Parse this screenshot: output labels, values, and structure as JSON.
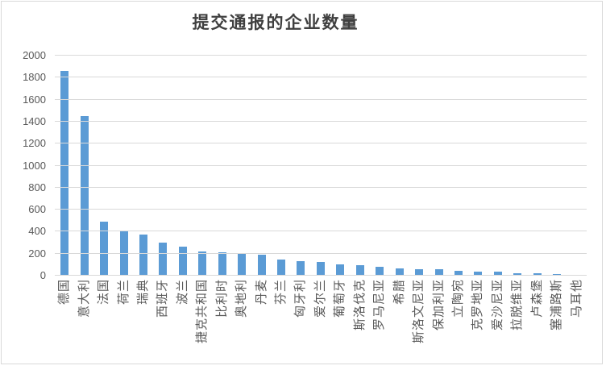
{
  "chart_title": "提交通报的企业数量",
  "chart_data": {
    "type": "bar",
    "title": "提交通报的企业数量",
    "categories": [
      "德国",
      "意大利",
      "法国",
      "荷兰",
      "瑞典",
      "西班牙",
      "波兰",
      "捷克共和国",
      "比利时",
      "奥地利",
      "丹麦",
      "芬兰",
      "匈牙利",
      "爱尔兰",
      "葡萄牙",
      "斯洛伐克",
      "罗马尼亚",
      "希腊",
      "斯洛文尼亚",
      "保加利亚",
      "立陶宛",
      "克罗地亚",
      "爱沙尼亚",
      "拉脱维亚",
      "卢森堡",
      "塞浦路斯",
      "马耳他"
    ],
    "values": [
      1850,
      1440,
      485,
      395,
      365,
      290,
      258,
      212,
      203,
      196,
      180,
      142,
      122,
      115,
      92,
      86,
      70,
      56,
      52,
      48,
      34,
      30,
      28,
      18,
      12,
      5,
      3
    ],
    "xlabel": "",
    "ylabel": "",
    "ylim": [
      0,
      2000
    ],
    "yticks": [
      0,
      200,
      400,
      600,
      800,
      1000,
      1200,
      1400,
      1600,
      1800,
      2000
    ],
    "grid": true,
    "legend_position": "none",
    "colors": {
      "bar": "#5B9BD5",
      "gridline": "#D9D9D9",
      "axis_labels": "#595959",
      "title": "#3F3F3F",
      "frame_border": "#D9D9D9",
      "background": "#FFFFFF"
    }
  }
}
